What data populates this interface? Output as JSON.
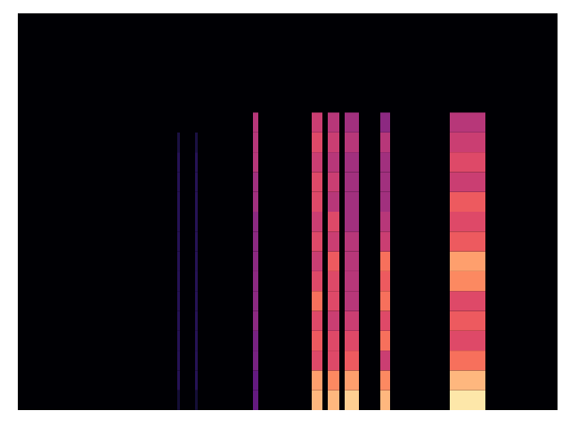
{
  "chart_data": {
    "type": "heatmap",
    "xlim": [
      0,
      606
    ],
    "ylim": [
      0,
      20
    ],
    "zlim": [
      0,
      1
    ],
    "tick_labels": false,
    "cells": [
      {
        "x1": 179,
        "x2": 182,
        "values": [
          0.1,
          0.15,
          0.15,
          0.15,
          0.15,
          0.15,
          0.15,
          0.15,
          0.15,
          0.15,
          0.15,
          0.15,
          0.15,
          0.12,
          0
        ]
      },
      {
        "x1": 199,
        "x2": 202,
        "values": [
          0.1,
          0.15,
          0.15,
          0.15,
          0.15,
          0.15,
          0.15,
          0.15,
          0.15,
          0.15,
          0.15,
          0.15,
          0.15,
          0.12,
          0
        ]
      },
      {
        "x1": 264,
        "x2": 270,
        "values": [
          0.3,
          0.3,
          0.35,
          0.35,
          0.4,
          0.4,
          0.4,
          0.4,
          0.4,
          0.4,
          0.45,
          0.45,
          0.5,
          0.5,
          0.5
        ]
      },
      {
        "x1": 330,
        "x2": 342,
        "values": [
          0.85,
          0.8,
          0.6,
          0.65,
          0.6,
          0.7,
          0.6,
          0.55,
          0.6,
          0.55,
          0.6,
          0.6,
          0.55,
          0.6,
          0.55
        ]
      },
      {
        "x1": 348,
        "x2": 361,
        "values": [
          0.85,
          0.75,
          0.6,
          0.6,
          0.55,
          0.6,
          0.6,
          0.65,
          0.55,
          0.6,
          0.5,
          0.55,
          0.5,
          0.55,
          0.5
        ]
      },
      {
        "x1": 367,
        "x2": 383,
        "values": [
          0.9,
          0.8,
          0.65,
          0.6,
          0.55,
          0.5,
          0.5,
          0.5,
          0.5,
          0.45,
          0.45,
          0.45,
          0.45,
          0.5,
          0.45
        ]
      },
      {
        "x1": 407,
        "x2": 418,
        "values": [
          0.85,
          0.75,
          0.55,
          0.7,
          0.6,
          0.7,
          0.65,
          0.7,
          0.55,
          0.5,
          0.45,
          0.45,
          0.45,
          0.5,
          0.4
        ]
      },
      {
        "x1": 485,
        "x2": 525,
        "values": [
          0.95,
          0.85,
          0.7,
          0.6,
          0.65,
          0.6,
          0.75,
          0.8,
          0.65,
          0.6,
          0.65,
          0.55,
          0.6,
          0.55,
          0.5
        ]
      }
    ]
  }
}
